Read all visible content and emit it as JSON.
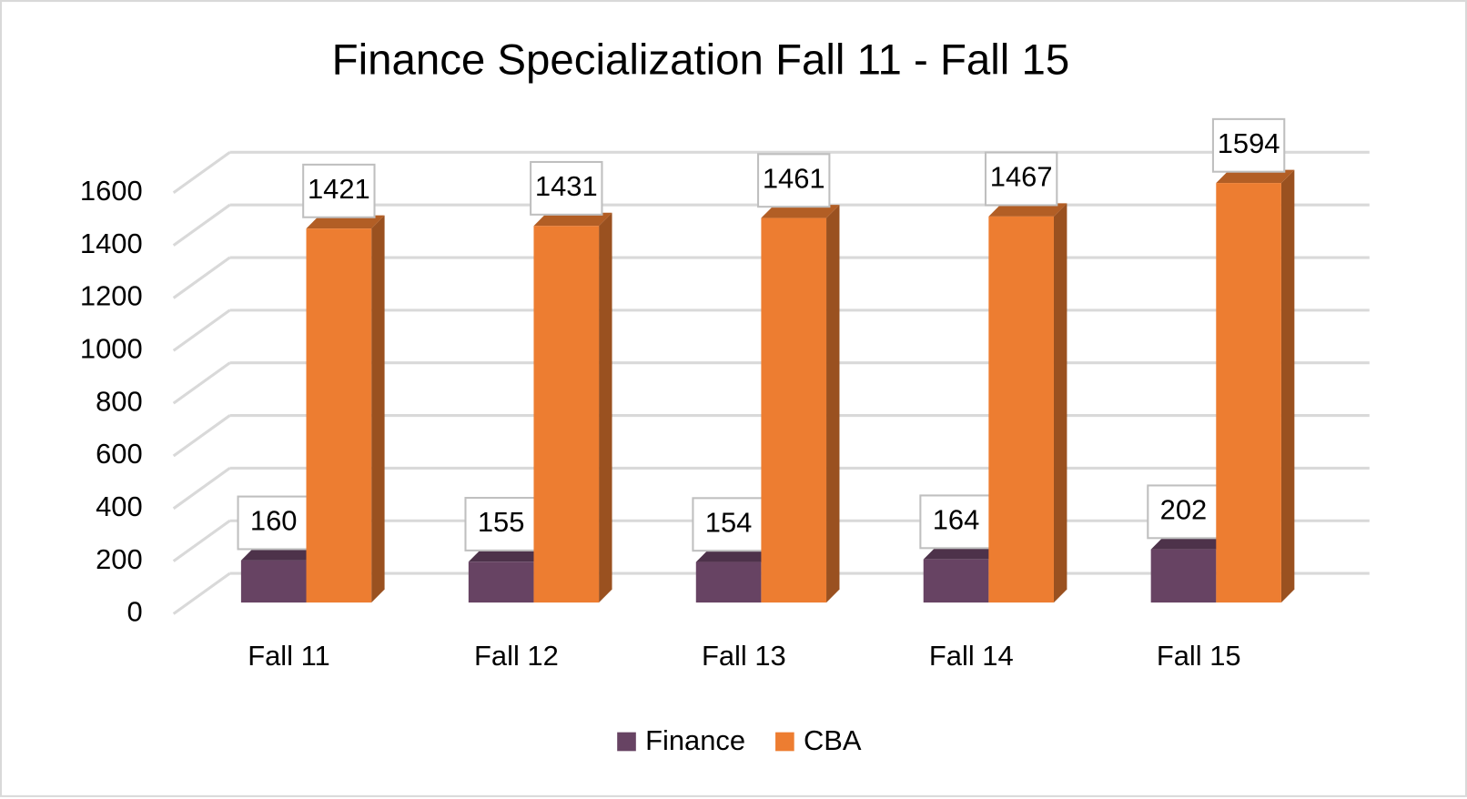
{
  "chart_data": {
    "type": "bar3d",
    "title": "Finance Specialization Fall 11 - Fall 15",
    "categories": [
      "Fall 11",
      "Fall 12",
      "Fall 13",
      "Fall 14",
      "Fall 15"
    ],
    "series": [
      {
        "name": "Finance",
        "color": "#674363",
        "values": [
          160,
          155,
          154,
          164,
          202
        ]
      },
      {
        "name": "CBA",
        "color": "#ed7d31",
        "values": [
          1421,
          1431,
          1461,
          1467,
          1594
        ]
      }
    ],
    "ylim": [
      0,
      1600
    ],
    "yticks": [
      0,
      200,
      400,
      600,
      800,
      1000,
      1200,
      1400,
      1600
    ],
    "grid": true,
    "legend": "bottom",
    "data_labels": true
  }
}
